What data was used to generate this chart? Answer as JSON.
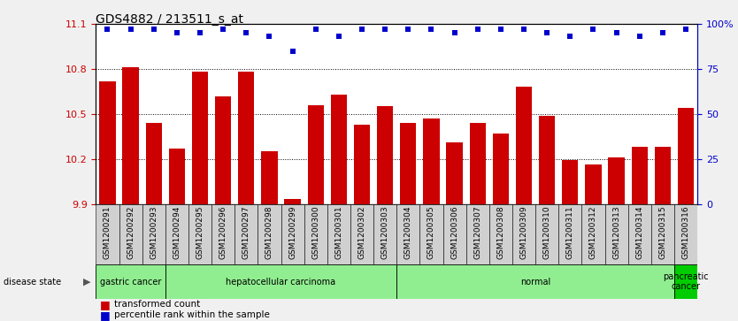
{
  "title": "GDS4882 / 213511_s_at",
  "samples": [
    "GSM1200291",
    "GSM1200292",
    "GSM1200293",
    "GSM1200294",
    "GSM1200295",
    "GSM1200296",
    "GSM1200297",
    "GSM1200298",
    "GSM1200299",
    "GSM1200300",
    "GSM1200301",
    "GSM1200302",
    "GSM1200303",
    "GSM1200304",
    "GSM1200305",
    "GSM1200306",
    "GSM1200307",
    "GSM1200308",
    "GSM1200309",
    "GSM1200310",
    "GSM1200311",
    "GSM1200312",
    "GSM1200313",
    "GSM1200314",
    "GSM1200315",
    "GSM1200316"
  ],
  "bar_values": [
    10.72,
    10.81,
    10.44,
    10.27,
    10.78,
    10.62,
    10.78,
    10.25,
    9.93,
    10.56,
    10.63,
    10.43,
    10.55,
    10.44,
    10.47,
    10.31,
    10.44,
    10.37,
    10.68,
    10.49,
    10.19,
    10.16,
    10.21,
    10.28,
    10.28,
    10.54
  ],
  "percentile_values": [
    97,
    97,
    97,
    95,
    95,
    97,
    95,
    93,
    85,
    97,
    93,
    97,
    97,
    97,
    97,
    95,
    97,
    97,
    97,
    95,
    93,
    97,
    95,
    93,
    95,
    97
  ],
  "ylim": [
    9.9,
    11.1
  ],
  "yticks_left": [
    9.9,
    10.2,
    10.5,
    10.8,
    11.1
  ],
  "yticks_right": [
    0,
    25,
    50,
    75,
    100
  ],
  "bar_color": "#cc0000",
  "dot_color": "#0000cc",
  "bg_color": "#f0f0f0",
  "plot_bg": "#ffffff",
  "xtick_bg": "#d0d0d0",
  "group_starts": [
    0,
    3,
    13,
    25
  ],
  "group_ends": [
    3,
    13,
    25,
    26
  ],
  "group_labels": [
    "gastric cancer",
    "hepatocellular carcinoma",
    "normal",
    "pancreatic\ncancer"
  ],
  "group_colors_light": "#90ee90",
  "group_color_dark": "#00cc00",
  "legend_colors": [
    "#cc0000",
    "#0000cc"
  ],
  "legend_labels": [
    "transformed count",
    "percentile rank within the sample"
  ]
}
